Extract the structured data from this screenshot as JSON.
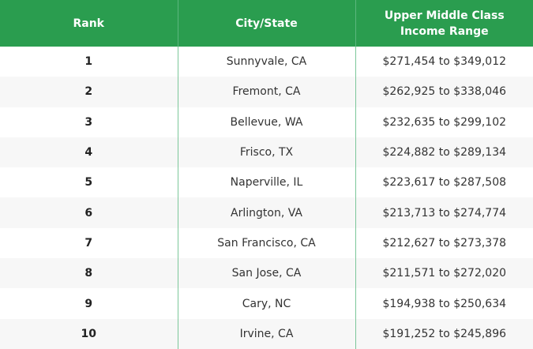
{
  "table": {
    "header": [
      "Rank",
      "City/State",
      "Upper Middle Class Income Range"
    ],
    "rows": [
      [
        "1",
        "Sunnyvale, CA",
        "$271,454 to $349,012"
      ],
      [
        "2",
        "Fremont, CA",
        "$262,925 to $338,046"
      ],
      [
        "3",
        "Bellevue, WA",
        "$232,635 to $299,102"
      ],
      [
        "4",
        "Frisco, TX",
        "$224,882 to $289,134"
      ],
      [
        "5",
        "Naperville, IL",
        "$223,617 to $287,508"
      ],
      [
        "6",
        "Arlington, VA",
        "$213,713 to $274,774"
      ],
      [
        "7",
        "San Francisco, CA",
        "$212,627 to $273,378"
      ],
      [
        "8",
        "San Jose, CA",
        "$211,571 to $272,020"
      ],
      [
        "9",
        "Cary, NC",
        "$194,938 to $250,634"
      ],
      [
        "10",
        "Irvine, CA",
        "$191,252 to $245,896"
      ]
    ]
  }
}
